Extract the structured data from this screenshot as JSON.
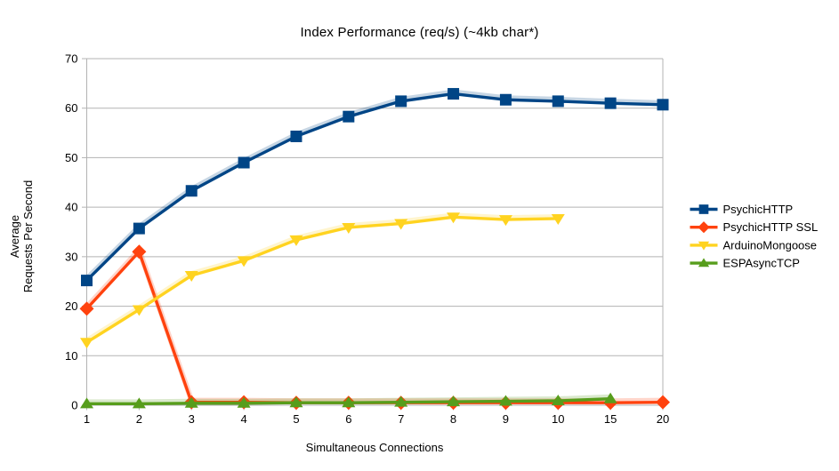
{
  "chart_data": {
    "type": "line",
    "title": "Index Performance (req/s) (~4kb char*)",
    "xlabel": "Simultaneous Connections",
    "ylabel_lines": [
      "Average",
      "Requests Per Second"
    ],
    "categories": [
      "1",
      "2",
      "3",
      "4",
      "5",
      "6",
      "7",
      "8",
      "9",
      "10",
      "15",
      "20"
    ],
    "ylim": [
      0,
      70
    ],
    "ytick_step": 10,
    "grid": true,
    "legend_position": "right",
    "colors": {
      "background": "#ffffff",
      "grid": "#b3b3b3",
      "axis": "#b3b3b3",
      "text": "#000000"
    },
    "series": [
      {
        "name": "PsychicHTTP",
        "color": "#004586",
        "marker": "square",
        "values": [
          25.2,
          35.7,
          43.3,
          49.0,
          54.3,
          58.3,
          61.4,
          62.9,
          61.7,
          61.4,
          61.0,
          60.7
        ]
      },
      {
        "name": "PsychicHTTP SSL",
        "color": "#FF420E",
        "marker": "diamond",
        "values": [
          19.5,
          31.0,
          0.6,
          0.6,
          0.5,
          0.5,
          0.5,
          0.5,
          0.5,
          0.5,
          0.5,
          0.6
        ]
      },
      {
        "name": "ArduinoMongoose",
        "color": "#FFD320",
        "marker": "triangle-down",
        "values": [
          12.7,
          19.3,
          26.2,
          29.2,
          33.4,
          35.9,
          36.7,
          38.0,
          37.5,
          37.7,
          null,
          null
        ]
      },
      {
        "name": "ESPAsyncTCP",
        "color": "#579D1C",
        "marker": "triangle-up",
        "values": [
          0.3,
          0.3,
          0.4,
          0.4,
          0.5,
          0.5,
          0.6,
          0.7,
          0.8,
          0.9,
          1.3,
          null
        ]
      }
    ]
  }
}
